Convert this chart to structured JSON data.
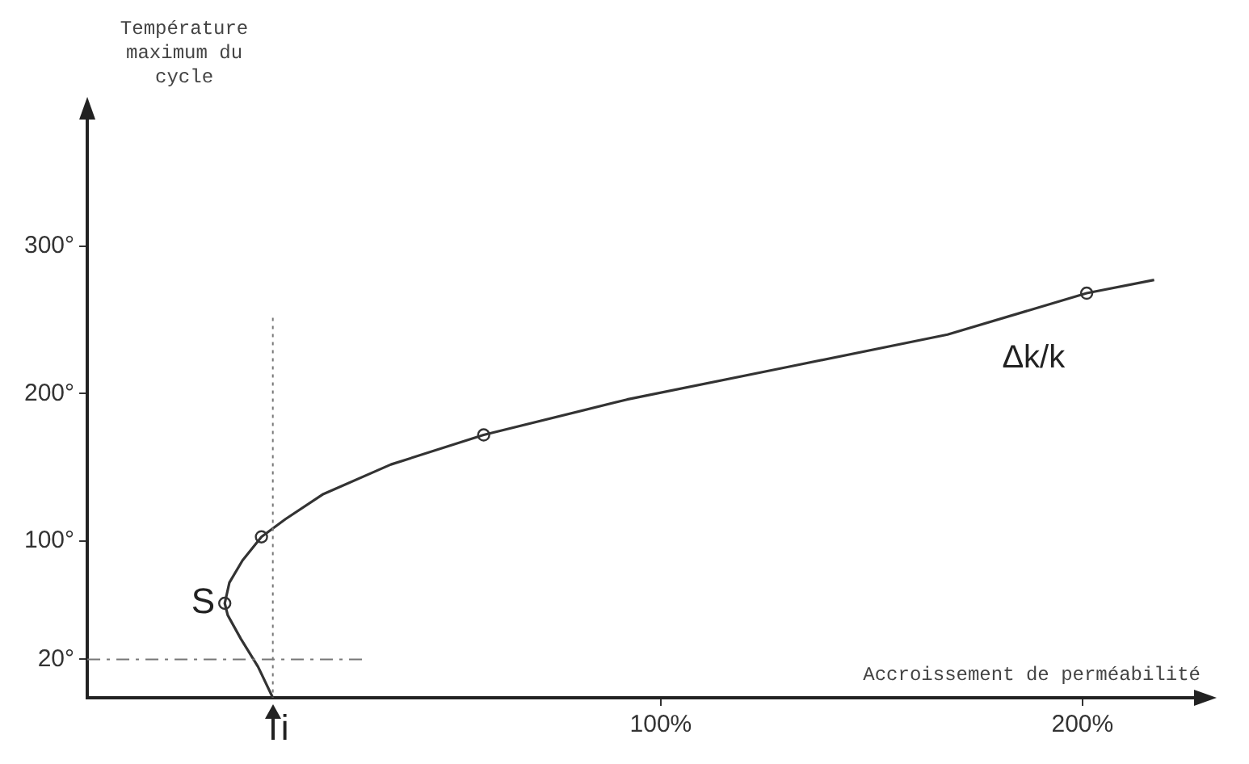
{
  "chart_data": {
    "type": "line",
    "xlabel": "Accroissement de perméabilité",
    "ylabel": "Température maximum du cycle",
    "xlim": [
      -36,
      228
    ],
    "xticks": [
      {
        "value": 100,
        "label": "100%"
      },
      {
        "value": 200,
        "label": "200%"
      }
    ],
    "ylim": [
      -6,
      390
    ],
    "yticks": [
      {
        "value": 20,
        "label": "20°"
      },
      {
        "value": 100,
        "label": "100°"
      },
      {
        "value": 200,
        "label": "200°"
      },
      {
        "value": 300,
        "label": "300°"
      }
    ],
    "grid": false,
    "legend": false,
    "series": [
      {
        "type": "line",
        "color": "#333333",
        "marker": "none",
        "line_style": "solid",
        "x": [
          8,
          4.5,
          0.4,
          -2.7,
          -3.4,
          -2.3,
          0.8,
          5.3,
          11,
          20,
          36,
          58,
          92,
          130,
          168,
          201,
          217
        ],
        "values": [
          -6,
          15,
          34,
          50,
          58,
          72,
          87,
          103,
          115,
          132,
          152,
          172,
          196,
          218,
          240,
          268,
          277
        ]
      },
      {
        "type": "scatter",
        "color": "#333333",
        "marker": "circle",
        "x": [
          -3.4,
          5.3,
          58,
          201
        ],
        "values": [
          58,
          103,
          172,
          268
        ]
      }
    ],
    "ref_lines": [
      {
        "axis": "y",
        "value": 20,
        "line_style": "dashed",
        "color": "#777777"
      },
      {
        "axis": "x",
        "value": 8,
        "line_style": "dotted",
        "color": "#777777"
      }
    ],
    "annotations": [
      {
        "text": "S",
        "x": -3.4,
        "y": 58
      },
      {
        "text": "i",
        "x": 8,
        "y": -6
      },
      "Δk/k"
    ]
  }
}
